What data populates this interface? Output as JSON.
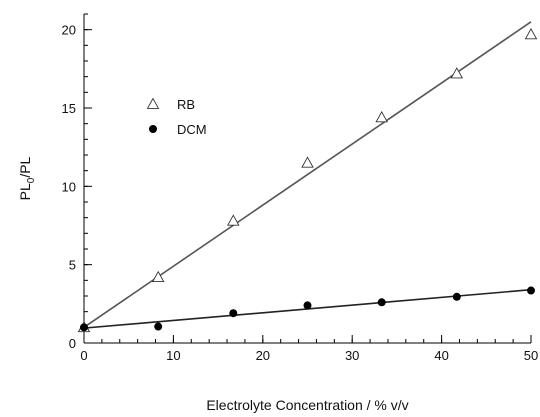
{
  "chart_data": {
    "type": "scatter",
    "xlabel": "Electrolyte Concentration / % v/v",
    "ylabel": {
      "main": "PL",
      "sub": "0",
      "rest": "/PL"
    },
    "xlim": [
      0,
      50
    ],
    "ylim": [
      0,
      21
    ],
    "x_ticks": [
      0,
      10,
      20,
      30,
      40,
      50
    ],
    "y_ticks": [
      0,
      5,
      10,
      15,
      20
    ],
    "x_minor_step": 2,
    "y_minor_step": 1,
    "grid": false,
    "legend_placement": "upper-left",
    "series": [
      {
        "name": "RB",
        "marker": "open-triangle",
        "color": "#333333",
        "points": [
          [
            0,
            1.0
          ],
          [
            8.3,
            4.2
          ],
          [
            16.7,
            7.8
          ],
          [
            25,
            11.5
          ],
          [
            33.3,
            14.4
          ],
          [
            41.7,
            17.2
          ],
          [
            50,
            19.7
          ]
        ],
        "fit": [
          [
            0,
            1.0
          ],
          [
            50,
            20.5
          ]
        ]
      },
      {
        "name": "DCM",
        "marker": "filled-circle",
        "color": "#000000",
        "points": [
          [
            0,
            1.0
          ],
          [
            8.3,
            1.05
          ],
          [
            16.7,
            1.9
          ],
          [
            25,
            2.4
          ],
          [
            33.3,
            2.6
          ],
          [
            41.7,
            2.95
          ],
          [
            50,
            3.35
          ]
        ],
        "fit": [
          [
            0,
            0.95
          ],
          [
            50,
            3.4
          ]
        ]
      }
    ]
  }
}
